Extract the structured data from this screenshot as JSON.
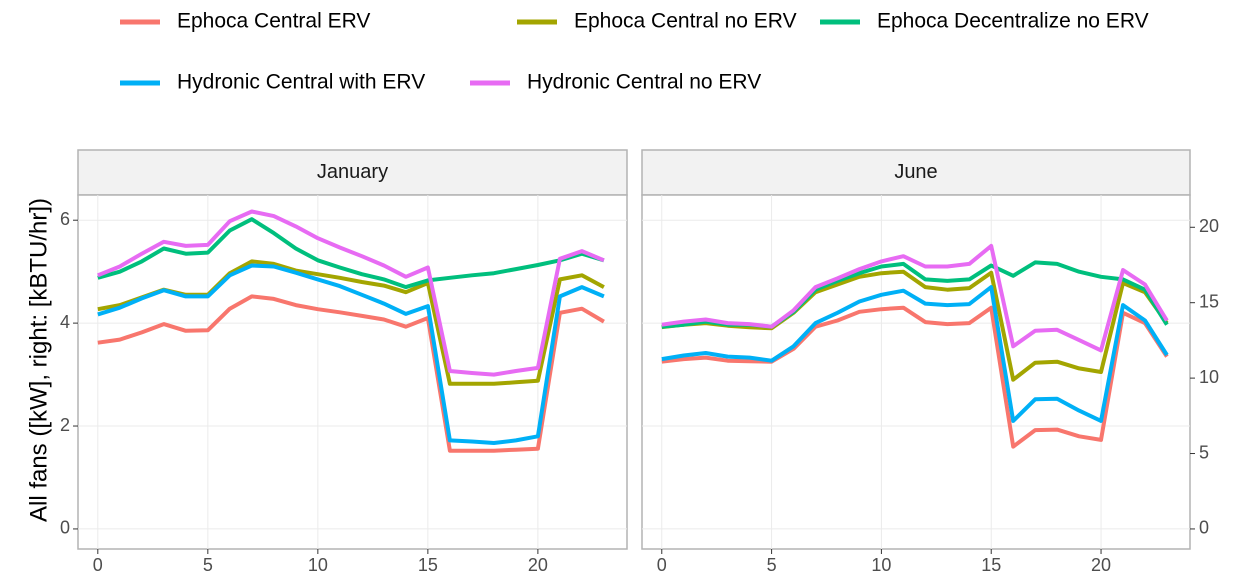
{
  "chart_data": {
    "type": "line",
    "ylabel": "All fans ([kW], right: [kBTU/hr])",
    "legend": [
      {
        "name": "Ephoca Central ERV",
        "color": "#f8766d"
      },
      {
        "name": "Ephoca Central no ERV",
        "color": "#a3a500"
      },
      {
        "name": "Ephoca Decentralize no ERV",
        "color": "#00bf7d"
      },
      {
        "name": "Hydronic Central with ERV",
        "color": "#00b0f6"
      },
      {
        "name": "Hydronic Central no ERV",
        "color": "#e76bf3"
      }
    ],
    "x": [
      0,
      1,
      2,
      3,
      4,
      5,
      6,
      7,
      8,
      9,
      10,
      11,
      12,
      13,
      14,
      15,
      16,
      17,
      18,
      19,
      20,
      21,
      22,
      23
    ],
    "xlim": [
      -0.9,
      24.05
    ],
    "xticks": [
      0,
      5,
      10,
      15,
      20
    ],
    "ylim": [
      -0.39,
      6.49
    ],
    "yticks": [
      0,
      2,
      4,
      6
    ],
    "y2lim": [
      -1.33,
      22.14
    ],
    "y2ticks": [
      0,
      5,
      10,
      15,
      20
    ],
    "grid": true,
    "panels": [
      {
        "title": "January",
        "series": [
          {
            "values": [
              3.62,
              3.68,
              3.82,
              3.98,
              3.85,
              3.86,
              4.28,
              4.52,
              4.47,
              4.35,
              4.27,
              4.21,
              4.14,
              4.07,
              3.93,
              4.1,
              1.52,
              1.52,
              1.52,
              1.54,
              1.56,
              4.2,
              4.28,
              4.03
            ]
          },
          {
            "values": [
              4.27,
              4.35,
              4.5,
              4.65,
              4.55,
              4.55,
              4.97,
              5.2,
              5.15,
              5.02,
              4.95,
              4.88,
              4.8,
              4.73,
              4.6,
              4.78,
              2.82,
              2.82,
              2.82,
              2.85,
              2.88,
              4.85,
              4.93,
              4.7
            ]
          },
          {
            "values": [
              4.88,
              5.0,
              5.2,
              5.45,
              5.35,
              5.37,
              5.8,
              6.02,
              5.75,
              5.45,
              5.22,
              5.08,
              4.95,
              4.85,
              4.7,
              4.83,
              4.88,
              4.93,
              4.97,
              5.05,
              5.13,
              5.22,
              5.35,
              5.22
            ]
          },
          {
            "values": [
              4.17,
              4.3,
              4.48,
              4.64,
              4.52,
              4.52,
              4.93,
              5.12,
              5.1,
              4.98,
              4.85,
              4.72,
              4.55,
              4.38,
              4.18,
              4.33,
              1.72,
              1.7,
              1.67,
              1.72,
              1.8,
              4.52,
              4.7,
              4.52
            ]
          },
          {
            "values": [
              4.93,
              5.1,
              5.35,
              5.58,
              5.5,
              5.52,
              5.98,
              6.17,
              6.08,
              5.88,
              5.65,
              5.47,
              5.3,
              5.12,
              4.9,
              5.08,
              3.07,
              3.03,
              3.0,
              3.07,
              3.13,
              5.25,
              5.4,
              5.22
            ]
          }
        ]
      },
      {
        "title": "June",
        "series": [
          {
            "values": [
              3.25,
              3.3,
              3.33,
              3.27,
              3.26,
              3.25,
              3.5,
              3.93,
              4.05,
              4.22,
              4.27,
              4.3,
              4.02,
              3.98,
              4.0,
              4.3,
              1.6,
              1.92,
              1.93,
              1.8,
              1.73,
              4.2,
              4.0,
              3.35
            ]
          },
          {
            "values": [
              3.92,
              3.97,
              4.0,
              3.95,
              3.92,
              3.9,
              4.2,
              4.6,
              4.75,
              4.9,
              4.97,
              5.0,
              4.7,
              4.65,
              4.68,
              4.98,
              2.9,
              3.23,
              3.25,
              3.12,
              3.05,
              4.78,
              4.6,
              4.0
            ]
          },
          {
            "values": [
              3.93,
              3.97,
              4.03,
              3.97,
              3.97,
              3.93,
              4.22,
              4.65,
              4.82,
              4.97,
              5.1,
              5.15,
              4.85,
              4.82,
              4.85,
              5.12,
              4.92,
              5.18,
              5.15,
              5.0,
              4.9,
              4.85,
              4.65,
              3.97
            ]
          },
          {
            "values": [
              3.3,
              3.37,
              3.42,
              3.35,
              3.33,
              3.27,
              3.55,
              4.0,
              4.2,
              4.42,
              4.55,
              4.63,
              4.38,
              4.35,
              4.37,
              4.7,
              2.1,
              2.52,
              2.53,
              2.3,
              2.1,
              4.35,
              4.05,
              3.38
            ]
          },
          {
            "values": [
              3.97,
              4.03,
              4.07,
              4.0,
              3.98,
              3.93,
              4.25,
              4.7,
              4.87,
              5.05,
              5.2,
              5.3,
              5.1,
              5.1,
              5.15,
              5.5,
              3.55,
              3.85,
              3.87,
              3.67,
              3.47,
              5.03,
              4.75,
              4.05
            ]
          }
        ]
      }
    ]
  }
}
